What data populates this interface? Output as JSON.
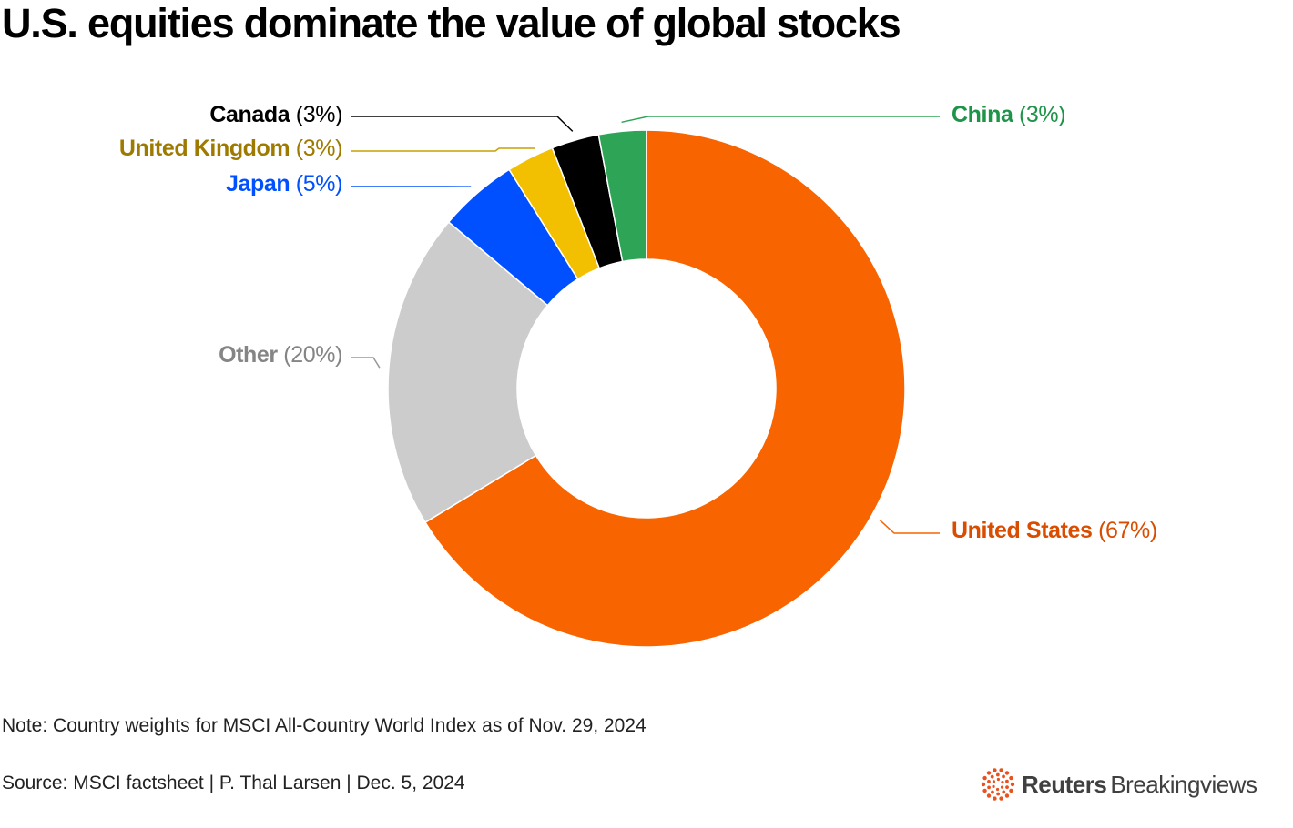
{
  "title": "U.S. equities dominate the value of global stocks",
  "chart_data": {
    "type": "pie",
    "donut": true,
    "title": "U.S. equities dominate the value of global stocks",
    "unit": "%",
    "slices": [
      {
        "name": "United States",
        "value": 67,
        "label": "(67%)",
        "color": "#f76400",
        "text_color": "#d94d00",
        "label_side": "right"
      },
      {
        "name": "Other",
        "value": 20,
        "label": "(20%)",
        "color": "#cccccc",
        "text_color": "#858585",
        "label_side": "left"
      },
      {
        "name": "Japan",
        "value": 5,
        "label": "(5%)",
        "color": "#0050ff",
        "text_color": "#0050ff",
        "label_side": "left"
      },
      {
        "name": "United Kingdom",
        "value": 3,
        "label": "(3%)",
        "color": "#f2c000",
        "text_color": "#9e7b00",
        "label_side": "left"
      },
      {
        "name": "Canada",
        "value": 3,
        "label": "(3%)",
        "color": "#000000",
        "text_color": "#000000",
        "label_side": "left"
      },
      {
        "name": "China",
        "value": 3,
        "label": "(3%)",
        "color": "#2ea556",
        "text_color": "#1e9448",
        "label_side": "right"
      }
    ]
  },
  "footer": {
    "note": "Note: Country weights for MSCI All-Country World Index as of Nov. 29, 2024",
    "source": "Source: MSCI factsheet | P. Thal Larsen | Dec. 5, 2024",
    "brand_name": "Reuters",
    "brand_sub": "Breakingviews",
    "brand_color": "#e9521f",
    "brand_icon": "reuters-dots-logo-icon"
  }
}
